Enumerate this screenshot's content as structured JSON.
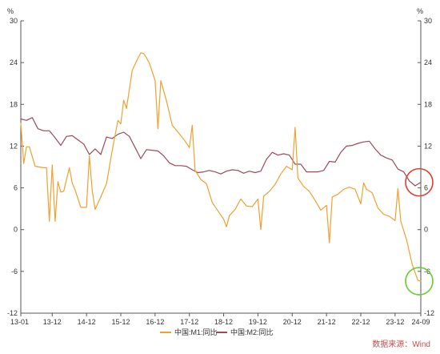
{
  "chart_data": {
    "type": "line",
    "unit_left": "%",
    "unit_right": "%",
    "ylim": [
      -12,
      30
    ],
    "y_ticks": [
      30,
      24,
      18,
      12,
      6,
      0,
      -6,
      -12
    ],
    "x_tick_labels": [
      "13-01",
      "13-12",
      "14-12",
      "15-12",
      "16-12",
      "17-12",
      "18-12",
      "19-12",
      "20-12",
      "21-12",
      "22-12",
      "23-12",
      "24-09"
    ],
    "x_tick_dates": [
      "2013-01",
      "2013-12",
      "2014-12",
      "2015-12",
      "2016-12",
      "2017-12",
      "2018-12",
      "2019-12",
      "2020-12",
      "2021-12",
      "2022-12",
      "2023-12",
      "2024-09"
    ],
    "x_range": [
      "2013-01",
      "2024-09"
    ],
    "grid": false,
    "legend_placement": "bottom",
    "source": "数据来源：Wind",
    "series": [
      {
        "name": "中国:M1:同比",
        "color": "#f0a030",
        "x": [
          "2013-01",
          "2013-02",
          "2013-03",
          "2013-04",
          "2013-06",
          "2013-09",
          "2013-10",
          "2013-11",
          "2013-12",
          "2014-01",
          "2014-02",
          "2014-03",
          "2014-04",
          "2014-06",
          "2014-07",
          "2014-08",
          "2014-10",
          "2014-12",
          "2015-01",
          "2015-02",
          "2015-03",
          "2015-05",
          "2015-07",
          "2015-09",
          "2015-11",
          "2015-12",
          "2016-01",
          "2016-02",
          "2016-04",
          "2016-06",
          "2016-07",
          "2016-08",
          "2016-09",
          "2016-10",
          "2016-11",
          "2016-12",
          "2017-01",
          "2017-02",
          "2017-04",
          "2017-06",
          "2017-08",
          "2017-10",
          "2017-12",
          "2018-01",
          "2018-02",
          "2018-04",
          "2018-06",
          "2018-08",
          "2018-10",
          "2018-12",
          "2019-01",
          "2019-02",
          "2019-04",
          "2019-06",
          "2019-08",
          "2019-10",
          "2019-12",
          "2020-01",
          "2020-02",
          "2020-04",
          "2020-06",
          "2020-08",
          "2020-10",
          "2020-12",
          "2021-01",
          "2021-02",
          "2021-04",
          "2021-06",
          "2021-08",
          "2021-10",
          "2021-12",
          "2022-01",
          "2022-02",
          "2022-04",
          "2022-06",
          "2022-08",
          "2022-10",
          "2022-12",
          "2023-01",
          "2023-02",
          "2023-04",
          "2023-06",
          "2023-08",
          "2023-10",
          "2023-12",
          "2024-01",
          "2024-02",
          "2024-04",
          "2024-06",
          "2024-08",
          "2024-09"
        ],
        "values": [
          15.3,
          9.5,
          11.9,
          11.9,
          9.1,
          8.9,
          8.9,
          1.2,
          9.3,
          1.2,
          6.9,
          5.4,
          5.5,
          8.9,
          6.7,
          5.7,
          3.2,
          3.2,
          10.6,
          5.6,
          2.9,
          4.7,
          6.6,
          11.4,
          15.7,
          15.2,
          18.6,
          17.4,
          22.9,
          24.6,
          25.4,
          25.3,
          24.7,
          23.9,
          22.7,
          21.4,
          14.5,
          21.4,
          18.5,
          15.0,
          14.0,
          13.0,
          11.8,
          15.0,
          8.5,
          7.2,
          6.6,
          3.9,
          2.7,
          1.5,
          0.4,
          2.0,
          2.9,
          4.4,
          3.4,
          3.3,
          4.4,
          0.0,
          4.8,
          5.5,
          6.5,
          8.0,
          9.1,
          8.6,
          14.7,
          7.4,
          6.2,
          5.5,
          4.2,
          2.8,
          3.5,
          -1.9,
          4.7,
          5.1,
          5.8,
          6.1,
          5.8,
          3.7,
          6.7,
          5.8,
          5.3,
          3.1,
          2.2,
          1.9,
          1.3,
          5.9,
          1.2,
          -1.4,
          -5.0,
          -7.3,
          -7.4
        ]
      },
      {
        "name": "中国:M2:同比",
        "color": "#9b4a5c",
        "x": [
          "2013-01",
          "2013-03",
          "2013-05",
          "2013-07",
          "2013-09",
          "2013-11",
          "2014-01",
          "2014-03",
          "2014-05",
          "2014-07",
          "2014-09",
          "2014-11",
          "2015-01",
          "2015-03",
          "2015-05",
          "2015-07",
          "2015-09",
          "2015-11",
          "2016-01",
          "2016-03",
          "2016-05",
          "2016-07",
          "2016-09",
          "2016-11",
          "2017-01",
          "2017-03",
          "2017-05",
          "2017-07",
          "2017-09",
          "2017-11",
          "2018-01",
          "2018-03",
          "2018-05",
          "2018-07",
          "2018-09",
          "2018-11",
          "2019-01",
          "2019-03",
          "2019-05",
          "2019-07",
          "2019-09",
          "2019-11",
          "2020-01",
          "2020-03",
          "2020-05",
          "2020-07",
          "2020-09",
          "2020-11",
          "2021-01",
          "2021-03",
          "2021-05",
          "2021-07",
          "2021-09",
          "2021-11",
          "2022-01",
          "2022-03",
          "2022-05",
          "2022-07",
          "2022-09",
          "2022-11",
          "2023-01",
          "2023-03",
          "2023-05",
          "2023-07",
          "2023-09",
          "2023-11",
          "2024-01",
          "2024-03",
          "2024-05",
          "2024-07",
          "2024-09"
        ],
        "values": [
          15.9,
          15.7,
          16.1,
          14.5,
          14.2,
          14.2,
          13.2,
          12.1,
          13.4,
          13.5,
          12.9,
          12.3,
          10.8,
          11.6,
          10.8,
          13.3,
          13.1,
          13.7,
          14.0,
          13.4,
          11.8,
          10.2,
          11.5,
          11.4,
          11.3,
          10.6,
          9.6,
          9.2,
          9.2,
          9.1,
          8.6,
          8.2,
          8.3,
          8.5,
          8.3,
          8.0,
          8.4,
          8.6,
          8.5,
          8.1,
          8.4,
          8.2,
          8.4,
          10.1,
          11.1,
          10.7,
          10.9,
          10.7,
          9.4,
          9.4,
          8.3,
          8.3,
          8.3,
          8.5,
          9.8,
          9.7,
          11.1,
          12.0,
          12.1,
          12.4,
          12.6,
          12.7,
          11.6,
          10.7,
          10.3,
          10.0,
          8.7,
          8.3,
          7.0,
          6.3,
          6.8
        ]
      }
    ],
    "annotations": [
      {
        "shape": "circle",
        "color": "#d84030",
        "series": "中国:M2:同比",
        "at_x": "2024-09",
        "at_y": 6.8
      },
      {
        "shape": "circle",
        "color": "#66cc33",
        "series": "中国:M1:同比",
        "at_x": "2024-09",
        "at_y": -7.4
      }
    ]
  }
}
